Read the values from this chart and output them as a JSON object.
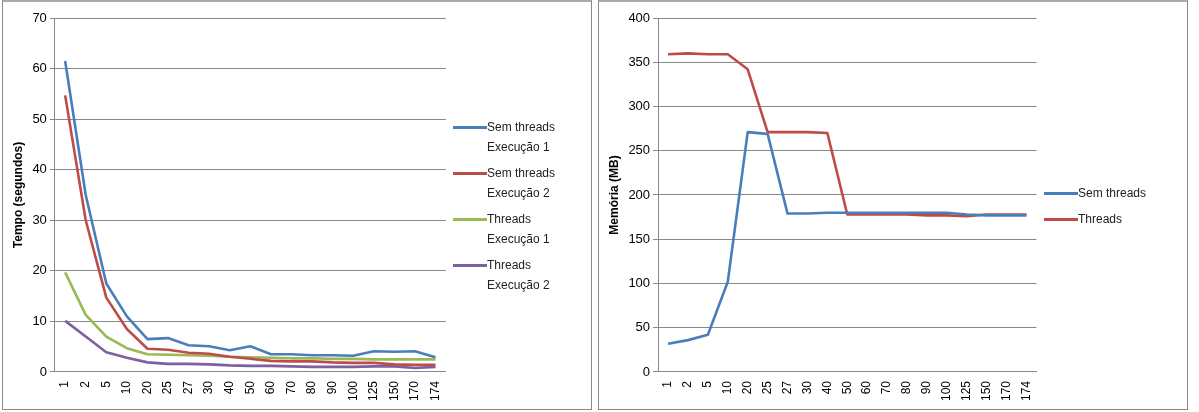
{
  "chart_data": [
    {
      "type": "line",
      "ylabel": "Tempo (segundos)",
      "categories": [
        "1",
        "2",
        "5",
        "10",
        "20",
        "25",
        "27",
        "30",
        "40",
        "50",
        "60",
        "70",
        "80",
        "90",
        "100",
        "125",
        "150",
        "170",
        "174"
      ],
      "ylim": [
        0,
        70
      ],
      "yticks": [
        0,
        10,
        20,
        30,
        40,
        50,
        60,
        70
      ],
      "grid": "y",
      "legend": "right",
      "marker": "none",
      "series": [
        {
          "name": "Sem threads Execução 1",
          "color": "#4a7ebb",
          "values": [
            61.5,
            35,
            17.5,
            11,
            6.5,
            6.7,
            5.3,
            5.1,
            4.3,
            5.1,
            3.5,
            3.5,
            3.3,
            3.3,
            3.2,
            4.1,
            4.0,
            4.1,
            2.9
          ]
        },
        {
          "name": "Sem threads Execução 2",
          "color": "#be4b48",
          "values": [
            54.7,
            30,
            14.7,
            8.5,
            4.6,
            4.4,
            3.8,
            3.6,
            3.0,
            2.6,
            2.2,
            2.1,
            2.1,
            1.9,
            1.8,
            1.8,
            1.5,
            1.4,
            1.4
          ]
        },
        {
          "name": "Threads Execução 1",
          "color": "#98b954",
          "values": [
            19.7,
            11.3,
            7,
            4.7,
            3.5,
            3.4,
            3.3,
            3.2,
            3.0,
            2.9,
            2.8,
            2.7,
            2.7,
            2.6,
            2.6,
            2.5,
            2.5,
            2.5,
            2.5
          ]
        },
        {
          "name": "Threads Execução 2",
          "color": "#7d60a0",
          "values": [
            10.1,
            7,
            3.9,
            2.8,
            1.9,
            1.6,
            1.6,
            1.5,
            1.3,
            1.2,
            1.2,
            1.1,
            1.0,
            1.0,
            1.0,
            1.1,
            1.1,
            0.8,
            1.0
          ]
        }
      ]
    },
    {
      "type": "line",
      "ylabel": "Memória (MB)",
      "categories": [
        "1",
        "2",
        "5",
        "10",
        "20",
        "25",
        "27",
        "30",
        "40",
        "50",
        "60",
        "70",
        "80",
        "90",
        "100",
        "125",
        "150",
        "170",
        "174"
      ],
      "ylim": [
        0,
        400
      ],
      "yticks": [
        0,
        50,
        100,
        150,
        200,
        250,
        300,
        350,
        400
      ],
      "grid": "y",
      "legend": "right",
      "marker": "none",
      "series": [
        {
          "name": "Sem threads",
          "color": "#4a7ebb",
          "values": [
            32,
            36,
            42,
            102,
            271,
            269,
            179,
            179,
            180,
            180,
            180,
            180,
            180,
            180,
            180,
            178,
            177,
            177,
            177
          ]
        },
        {
          "name": "Threads",
          "color": "#be4b48",
          "values": [
            359,
            360,
            359,
            359,
            342,
            271,
            271,
            271,
            270,
            178,
            178,
            178,
            178,
            177,
            177,
            176,
            178,
            178,
            178
          ]
        }
      ]
    }
  ]
}
